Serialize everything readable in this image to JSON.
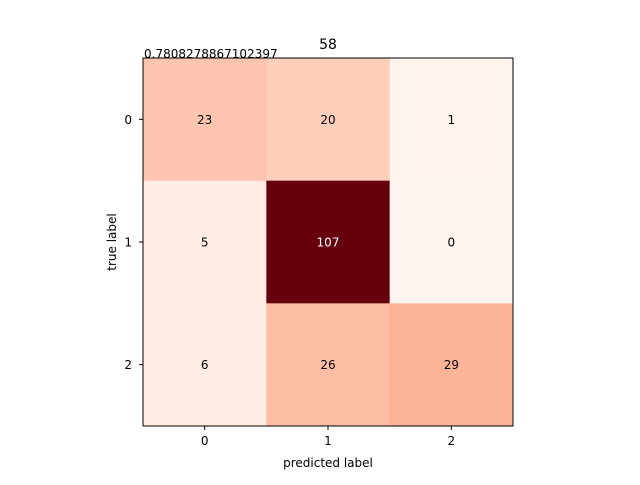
{
  "chart_data": {
    "type": "heatmap",
    "title": "58",
    "annotation": "0.7808278867102397",
    "xlabel": "predicted label",
    "ylabel": "true label",
    "x_categories": [
      "0",
      "1",
      "2"
    ],
    "y_categories": [
      "0",
      "1",
      "2"
    ],
    "values": [
      [
        23,
        20,
        1
      ],
      [
        5,
        107,
        0
      ],
      [
        6,
        26,
        29
      ]
    ],
    "colormap": "Reds",
    "colors": {
      "low": "#fff5f0",
      "high": "#67000d",
      "text_dark": "#000000",
      "text_light": "#ffffff"
    },
    "grid": false,
    "legend": "none"
  }
}
